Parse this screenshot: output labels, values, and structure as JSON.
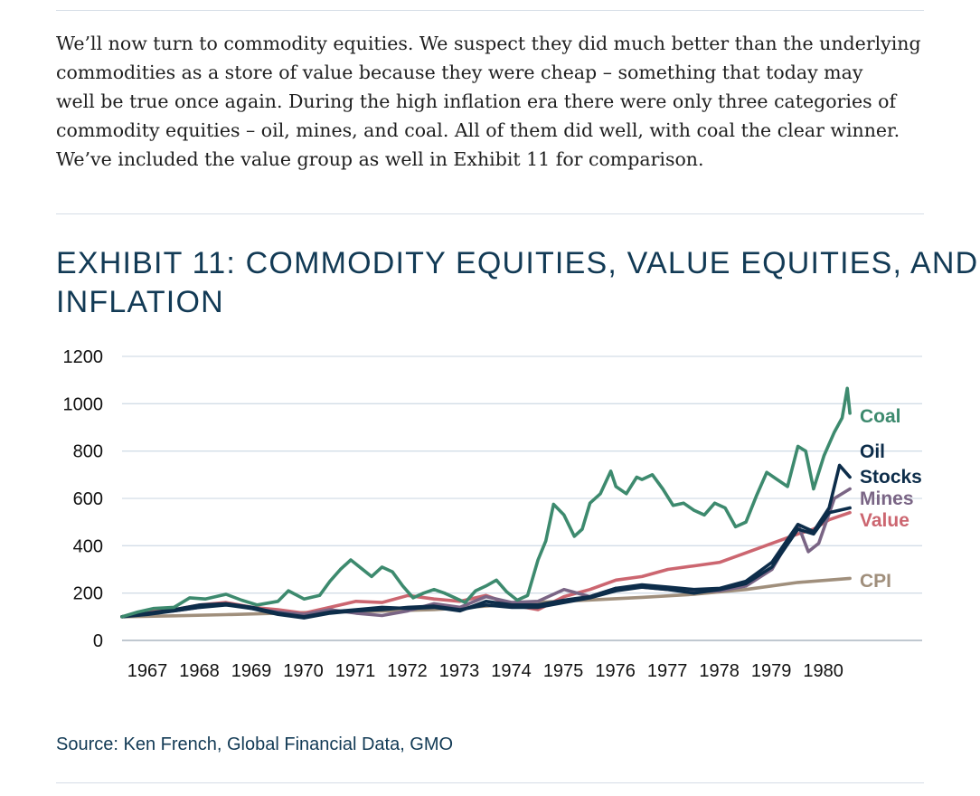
{
  "article": {
    "intro_lines": [
      "We’ll now turn to commodity equities. We suspect they did much better than the underlying",
      "commodities as a store of value because they were cheap – something that today may",
      "well be true once again. During the high inflation era there were only three categories of",
      "commodity equities – oil, mines, and coal. All of them did well, with coal the clear winner.",
      "We’ve included the value group as well in Exhibit 11 for comparison."
    ]
  },
  "exhibit": {
    "title_lines": [
      "EXHIBIT 11: COMMODITY EQUITIES, VALUE EQUITIES, AND",
      "INFLATION"
    ],
    "source": "Source: Ken French, Global Financial Data, GMO"
  },
  "chart_data": {
    "type": "line",
    "title": "EXHIBIT 11: COMMODITY EQUITIES, VALUE EQUITIES, AND INFLATION",
    "xlabel": "",
    "ylabel": "",
    "xlim": [
      1967,
      1981.05
    ],
    "ylim": [
      0,
      1200
    ],
    "yticks": [
      0,
      200,
      400,
      600,
      800,
      1000,
      1200
    ],
    "xticks": [
      1967,
      1968,
      1969,
      1970,
      1971,
      1972,
      1973,
      1974,
      1975,
      1976,
      1977,
      1978,
      1979,
      1980
    ],
    "grid": "horizontal",
    "legend": "direct labels at right end of lines",
    "series": [
      {
        "name": "CPI",
        "color": "#a08f7c",
        "x": [
          1967,
          1968,
          1969,
          1970,
          1971,
          1972,
          1973,
          1974,
          1975,
          1976,
          1977,
          1978,
          1979,
          1980,
          1981
        ],
        "y": [
          100,
          104,
          109,
          115,
          120,
          124,
          130,
          145,
          161,
          171,
          182,
          195,
          215,
          245,
          262
        ]
      },
      {
        "name": "Value",
        "color": "#cc6670",
        "x": [
          1967,
          1967.5,
          1968,
          1968.5,
          1969,
          1969.5,
          1970,
          1970.5,
          1971,
          1971.5,
          1972,
          1972.5,
          1973,
          1973.5,
          1974,
          1974.5,
          1975,
          1975.5,
          1976,
          1976.5,
          1977,
          1977.5,
          1978,
          1978.5,
          1979,
          1979.5,
          1980,
          1980.3,
          1980.6,
          1981
        ],
        "y": [
          100,
          120,
          130,
          150,
          160,
          140,
          130,
          115,
          140,
          165,
          160,
          190,
          175,
          165,
          190,
          150,
          130,
          185,
          215,
          255,
          270,
          300,
          315,
          330,
          370,
          410,
          450,
          470,
          510,
          540
        ]
      },
      {
        "name": "Mines",
        "color": "#7a6585",
        "x": [
          1967,
          1967.5,
          1968,
          1968.5,
          1969,
          1969.5,
          1970,
          1970.5,
          1971,
          1971.5,
          1972,
          1972.5,
          1973,
          1973.5,
          1974,
          1974.5,
          1975,
          1975.5,
          1976,
          1976.5,
          1977,
          1977.5,
          1978,
          1978.5,
          1979,
          1979.5,
          1980,
          1980.2,
          1980.4,
          1980.7,
          1981
        ],
        "y": [
          100,
          115,
          125,
          140,
          155,
          135,
          120,
          110,
          130,
          115,
          105,
          125,
          155,
          140,
          185,
          160,
          165,
          215,
          185,
          220,
          225,
          215,
          205,
          210,
          230,
          300,
          490,
          375,
          410,
          600,
          640
        ]
      },
      {
        "name": "Stocks",
        "color": "#0d2d4a",
        "x": [
          1967,
          1967.5,
          1968,
          1968.5,
          1969,
          1969.5,
          1970,
          1970.5,
          1971,
          1971.5,
          1972,
          1972.5,
          1973,
          1973.5,
          1974,
          1974.5,
          1975,
          1975.5,
          1976,
          1976.5,
          1977,
          1977.5,
          1978,
          1978.5,
          1979,
          1979.5,
          1980,
          1980.3,
          1980.6,
          1980.8,
          1981
        ],
        "y": [
          100,
          115,
          130,
          150,
          155,
          140,
          115,
          100,
          120,
          130,
          140,
          135,
          140,
          125,
          165,
          150,
          150,
          170,
          185,
          220,
          235,
          225,
          215,
          220,
          250,
          330,
          490,
          460,
          560,
          740,
          690
        ]
      },
      {
        "name": "Oil",
        "color": "#0d2d4a",
        "x": [
          1967,
          1967.5,
          1968,
          1968.5,
          1969,
          1969.5,
          1970,
          1970.5,
          1971,
          1971.5,
          1972,
          1972.5,
          1973,
          1973.5,
          1974,
          1974.5,
          1975,
          1975.5,
          1976,
          1976.5,
          1977,
          1977.5,
          1978,
          1978.5,
          1979,
          1979.5,
          1980,
          1980.3,
          1980.6,
          1981
        ],
        "y": [
          100,
          110,
          125,
          140,
          150,
          135,
          110,
          95,
          115,
          125,
          130,
          140,
          145,
          130,
          150,
          140,
          140,
          160,
          180,
          210,
          225,
          215,
          200,
          215,
          240,
          310,
          470,
          450,
          540,
          560
        ]
      },
      {
        "name": "Coal",
        "color": "#3d8a6e",
        "x": [
          1967,
          1967.3,
          1967.6,
          1968,
          1968.3,
          1968.6,
          1969,
          1969.3,
          1969.6,
          1970,
          1970.2,
          1970.5,
          1970.8,
          1971,
          1971.2,
          1971.4,
          1971.6,
          1971.8,
          1972,
          1972.2,
          1972.4,
          1972.6,
          1972.8,
          1973,
          1973.2,
          1973.4,
          1973.6,
          1973.8,
          1974,
          1974.2,
          1974.4,
          1974.6,
          1974.8,
          1975,
          1975.15,
          1975.3,
          1975.5,
          1975.7,
          1975.85,
          1976,
          1976.2,
          1976.4,
          1976.5,
          1976.7,
          1976.9,
          1977,
          1977.2,
          1977.4,
          1977.6,
          1977.8,
          1978,
          1978.2,
          1978.4,
          1978.6,
          1978.8,
          1979,
          1979.2,
          1979.4,
          1979.6,
          1979.8,
          1980,
          1980.15,
          1980.3,
          1980.5,
          1980.7,
          1980.85,
          1980.95,
          1981
        ],
        "y": [
          100,
          120,
          135,
          140,
          180,
          175,
          195,
          170,
          150,
          165,
          210,
          175,
          190,
          250,
          300,
          340,
          305,
          270,
          310,
          290,
          230,
          180,
          200,
          215,
          200,
          180,
          160,
          210,
          230,
          255,
          205,
          170,
          190,
          340,
          420,
          575,
          530,
          440,
          470,
          580,
          620,
          715,
          650,
          620,
          690,
          680,
          700,
          640,
          570,
          580,
          550,
          530,
          580,
          560,
          480,
          500,
          610,
          710,
          680,
          650,
          820,
          800,
          640,
          780,
          880,
          940,
          1065,
          960
        ]
      }
    ]
  }
}
